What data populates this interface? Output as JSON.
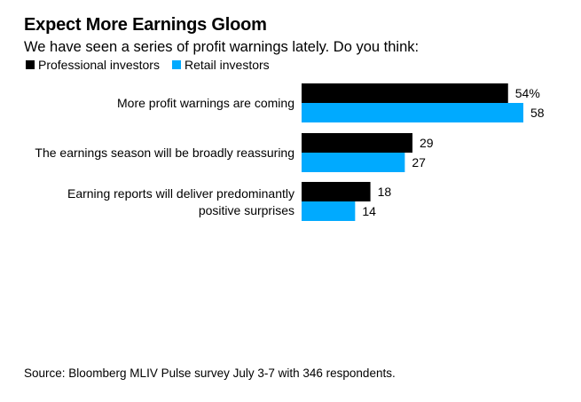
{
  "chart_data": {
    "type": "bar",
    "orientation": "horizontal",
    "title": "Expect More Earnings Gloom",
    "subtitle": "We have seen a series of profit warnings lately. Do you think:",
    "categories": [
      [
        "More profit warnings are coming"
      ],
      [
        "The earnings season will be broadly reassuring"
      ],
      [
        "Earning reports will deliver predominantly",
        "positive surprises"
      ]
    ],
    "series": [
      {
        "name": "Professional investors",
        "color": "#000000",
        "values": [
          54,
          29,
          18
        ],
        "labels": [
          "54%",
          "29",
          "18"
        ]
      },
      {
        "name": "Retail investors",
        "color": "#00aaff",
        "values": [
          58,
          27,
          14
        ],
        "labels": [
          "58",
          "27",
          "14"
        ]
      }
    ],
    "xlim": [
      0,
      58
    ],
    "unit": "%",
    "grid": false,
    "legend_position": "top-left",
    "source": "Source: Bloomberg MLIV Pulse survey July 3-7 with 346 respondents."
  }
}
